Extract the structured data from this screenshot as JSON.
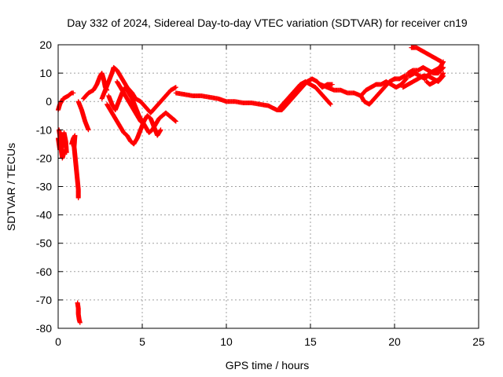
{
  "chart_data": {
    "type": "scatter",
    "title": "Day 332 of 2024, Sidereal Day-to-day VTEC variation (SDTVAR) for receiver cn19",
    "xlabel": "GPS time / hours",
    "ylabel": "SDTVAR / TECUs",
    "xlim": [
      0,
      25
    ],
    "ylim": [
      -80,
      20
    ],
    "xticks": [
      0,
      5,
      10,
      15,
      20,
      25
    ],
    "yticks": [
      20,
      10,
      0,
      -10,
      -20,
      -30,
      -40,
      -50,
      -60,
      -70,
      -80
    ],
    "grid": true,
    "marker": "plus",
    "color": "#ff0000",
    "series": [
      {
        "name": "cn19",
        "segments": [
          [
            [
              0.0,
              -3
            ],
            [
              0.1,
              -1
            ],
            [
              0.3,
              1
            ],
            [
              0.6,
              2
            ],
            [
              0.8,
              3
            ],
            [
              0.9,
              3
            ]
          ],
          [
            [
              0.05,
              -10
            ],
            [
              0.1,
              -12
            ],
            [
              0.15,
              -15
            ],
            [
              0.2,
              -18
            ],
            [
              0.25,
              -20
            ],
            [
              0.3,
              -19
            ],
            [
              0.4,
              -17
            ],
            [
              0.5,
              -18
            ],
            [
              0.45,
              -14
            ],
            [
              0.35,
              -11
            ],
            [
              0.3,
              -16
            ],
            [
              0.2,
              -12
            ]
          ],
          [
            [
              0.0,
              -13
            ],
            [
              0.05,
              -15
            ],
            [
              0.1,
              -17
            ]
          ],
          [
            [
              0.8,
              -15
            ],
            [
              0.9,
              -13
            ],
            [
              1.0,
              -12
            ],
            [
              0.95,
              -16
            ],
            [
              1.0,
              -19
            ],
            [
              1.05,
              -22
            ],
            [
              1.1,
              -25
            ],
            [
              1.15,
              -28
            ],
            [
              1.2,
              -31
            ],
            [
              1.2,
              -34
            ]
          ],
          [
            [
              1.15,
              -71
            ],
            [
              1.2,
              -73
            ],
            [
              1.2,
              -75
            ],
            [
              1.25,
              -77
            ],
            [
              1.3,
              -78
            ]
          ],
          [
            [
              1.2,
              0
            ],
            [
              1.4,
              -3
            ],
            [
              1.6,
              -7
            ],
            [
              1.8,
              -10
            ]
          ],
          [
            [
              1.5,
              1
            ],
            [
              1.8,
              3
            ],
            [
              2.1,
              4
            ],
            [
              2.3,
              6
            ],
            [
              2.5,
              9
            ],
            [
              2.6,
              10
            ],
            [
              2.7,
              8
            ],
            [
              2.8,
              5
            ],
            [
              2.9,
              4
            ]
          ],
          [
            [
              2.6,
              1
            ],
            [
              2.8,
              4
            ],
            [
              3.0,
              7
            ],
            [
              3.2,
              10
            ],
            [
              3.3,
              12
            ],
            [
              3.5,
              11
            ],
            [
              3.7,
              9
            ],
            [
              3.9,
              7
            ],
            [
              4.1,
              5
            ],
            [
              4.4,
              3
            ],
            [
              4.6,
              1
            ],
            [
              4.9,
              0
            ],
            [
              5.2,
              -2
            ],
            [
              5.5,
              -4
            ],
            [
              5.8,
              -2
            ],
            [
              6.1,
              0
            ],
            [
              6.4,
              2
            ],
            [
              6.7,
              4
            ],
            [
              7.0,
              5
            ]
          ],
          [
            [
              2.9,
              -1
            ],
            [
              3.1,
              -3
            ],
            [
              3.3,
              -5
            ],
            [
              3.5,
              -7
            ],
            [
              3.7,
              -9
            ],
            [
              3.9,
              -11
            ],
            [
              4.1,
              -12
            ],
            [
              4.3,
              -14
            ],
            [
              4.5,
              -15
            ],
            [
              4.7,
              -13
            ],
            [
              4.9,
              -10
            ],
            [
              5.1,
              -7
            ],
            [
              5.3,
              -5
            ],
            [
              5.5,
              -6
            ],
            [
              5.7,
              -9
            ],
            [
              5.9,
              -12
            ],
            [
              6.1,
              -10
            ]
          ],
          [
            [
              3.0,
              2
            ],
            [
              3.2,
              -1
            ],
            [
              3.4,
              -3
            ],
            [
              3.6,
              0
            ],
            [
              3.8,
              3
            ],
            [
              4.0,
              5
            ],
            [
              4.2,
              3
            ],
            [
              4.4,
              1
            ],
            [
              4.6,
              -2
            ],
            [
              4.8,
              -5
            ],
            [
              5.0,
              -7
            ],
            [
              5.2,
              -9
            ],
            [
              5.4,
              -11
            ],
            [
              5.6,
              -10
            ],
            [
              5.8,
              -8
            ],
            [
              6.0,
              -6
            ],
            [
              6.2,
              -5
            ],
            [
              6.4,
              -4
            ],
            [
              6.6,
              -5
            ],
            [
              6.8,
              -6
            ],
            [
              7.0,
              -7
            ]
          ],
          [
            [
              3.5,
              7
            ],
            [
              3.7,
              5
            ],
            [
              3.9,
              3
            ],
            [
              4.1,
              1
            ],
            [
              4.3,
              -1
            ],
            [
              4.5,
              -3
            ],
            [
              4.7,
              -5
            ],
            [
              4.9,
              -7
            ],
            [
              5.1,
              -8
            ]
          ],
          [
            [
              7.0,
              3
            ],
            [
              7.5,
              2.5
            ],
            [
              8.0,
              2
            ],
            [
              8.5,
              2
            ],
            [
              9.0,
              1.5
            ],
            [
              9.5,
              1
            ],
            [
              10.0,
              0
            ],
            [
              10.5,
              0
            ],
            [
              11.0,
              -0.5
            ],
            [
              11.5,
              -0.5
            ],
            [
              12.0,
              -1
            ],
            [
              12.5,
              -1.5
            ],
            [
              13.0,
              -3
            ],
            [
              13.3,
              -3
            ],
            [
              13.6,
              -1
            ],
            [
              13.9,
              1
            ],
            [
              14.2,
              3
            ],
            [
              14.5,
              5
            ],
            [
              14.8,
              7
            ],
            [
              15.1,
              8
            ],
            [
              15.4,
              7
            ],
            [
              15.7,
              5
            ],
            [
              16.0,
              6
            ],
            [
              16.3,
              6
            ]
          ],
          [
            [
              13.2,
              -2
            ],
            [
              13.5,
              0
            ],
            [
              13.8,
              2
            ],
            [
              14.1,
              4
            ],
            [
              14.4,
              6
            ],
            [
              14.7,
              7
            ],
            [
              15.0,
              6
            ],
            [
              15.3,
              5
            ],
            [
              15.6,
              3
            ],
            [
              15.9,
              1
            ],
            [
              16.2,
              -1
            ]
          ],
          [
            [
              15.6,
              6
            ],
            [
              16.0,
              5
            ],
            [
              16.4,
              4
            ],
            [
              16.8,
              4
            ],
            [
              17.2,
              3
            ],
            [
              17.6,
              3
            ],
            [
              18.0,
              2
            ],
            [
              18.2,
              0
            ],
            [
              18.5,
              -1
            ],
            [
              18.8,
              1
            ],
            [
              19.1,
              3
            ],
            [
              19.4,
              5
            ],
            [
              19.7,
              7
            ],
            [
              20.0,
              8
            ],
            [
              20.3,
              8
            ],
            [
              20.6,
              9
            ],
            [
              20.9,
              9
            ],
            [
              21.2,
              10
            ],
            [
              21.5,
              9
            ],
            [
              21.8,
              8
            ],
            [
              22.1,
              10
            ],
            [
              22.4,
              11
            ],
            [
              22.7,
              12
            ],
            [
              22.9,
              14
            ]
          ],
          [
            [
              18.0,
              2
            ],
            [
              18.3,
              4
            ],
            [
              18.6,
              5
            ],
            [
              18.9,
              6
            ],
            [
              19.2,
              6
            ],
            [
              19.5,
              7
            ],
            [
              19.8,
              6
            ],
            [
              20.1,
              5
            ],
            [
              20.4,
              6
            ],
            [
              20.7,
              8
            ]
          ],
          [
            [
              20.8,
              10
            ],
            [
              21.1,
              11
            ],
            [
              21.4,
              11
            ],
            [
              21.7,
              12
            ],
            [
              22.0,
              11
            ],
            [
              22.3,
              10
            ],
            [
              22.6,
              10
            ],
            [
              22.9,
              12
            ]
          ],
          [
            [
              21.0,
              19
            ],
            [
              21.3,
              19
            ],
            [
              21.6,
              18
            ],
            [
              21.9,
              17
            ],
            [
              22.2,
              16
            ],
            [
              22.5,
              15
            ],
            [
              22.8,
              14
            ]
          ],
          [
            [
              20.5,
              5
            ],
            [
              20.8,
              6
            ],
            [
              21.1,
              7
            ],
            [
              21.4,
              8
            ],
            [
              21.7,
              9
            ],
            [
              22.0,
              9
            ],
            [
              22.3,
              8
            ],
            [
              22.6,
              7
            ],
            [
              22.9,
              9
            ]
          ],
          [
            [
              21.9,
              7
            ],
            [
              22.1,
              6
            ],
            [
              22.4,
              7
            ],
            [
              22.7,
              8
            ],
            [
              22.9,
              10
            ]
          ]
        ]
      }
    ]
  }
}
